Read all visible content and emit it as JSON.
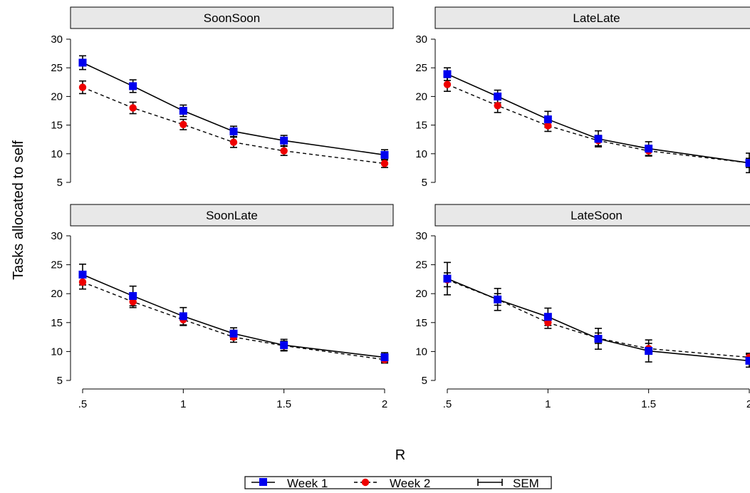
{
  "chart_data": {
    "type": "line",
    "ylabel": "Tasks allocated to self",
    "xlabel": "R",
    "x": [
      0.5,
      0.75,
      1,
      1.25,
      1.5,
      2
    ],
    "x_ticks": [
      {
        "value": 0.5,
        "label": ".5"
      },
      {
        "value": 1,
        "label": "1"
      },
      {
        "value": 1.5,
        "label": "1.5"
      },
      {
        "value": 2,
        "label": "2"
      }
    ],
    "y_ticks": [
      5,
      10,
      15,
      20,
      25,
      30
    ],
    "xlim": [
      0.5,
      2
    ],
    "ylim": [
      5,
      30
    ],
    "legend": {
      "position": "bottom",
      "entries": [
        {
          "label": "Week 1",
          "marker": "square",
          "color": "#0000ee",
          "line": "solid"
        },
        {
          "label": "Week 2",
          "marker": "circle",
          "color": "#ee0000",
          "line": "dashed"
        },
        {
          "label": "SEM",
          "marker": "errorbar",
          "color": "#000000"
        }
      ]
    },
    "panels": [
      {
        "title": "SoonSoon",
        "series": [
          {
            "name": "Week 1",
            "values": [
              25.9,
              21.8,
              17.5,
              13.9,
              12.3,
              9.8
            ],
            "sem": [
              1.2,
              1.1,
              1.0,
              0.9,
              0.9,
              0.9
            ]
          },
          {
            "name": "Week 2",
            "values": [
              21.6,
              18.0,
              15.1,
              12.0,
              10.5,
              8.3
            ],
            "sem": [
              1.1,
              1.0,
              0.9,
              0.9,
              0.8,
              0.7
            ]
          }
        ]
      },
      {
        "title": "LateLate",
        "series": [
          {
            "name": "Week 1",
            "values": [
              23.9,
              20.0,
              16.0,
              12.6,
              10.9,
              8.4
            ],
            "sem": [
              1.1,
              1.1,
              1.4,
              1.4,
              1.2,
              1.7
            ]
          },
          {
            "name": "Week 2",
            "values": [
              22.1,
              18.4,
              14.9,
              12.3,
              10.5,
              8.4
            ],
            "sem": [
              1.2,
              1.2,
              1.0,
              0.9,
              0.9,
              0.8
            ]
          }
        ]
      },
      {
        "title": "SoonLate",
        "series": [
          {
            "name": "Week 1",
            "values": [
              23.3,
              19.6,
              16.1,
              13.1,
              11.1,
              9.0
            ],
            "sem": [
              1.8,
              1.7,
              1.5,
              1.0,
              1.0,
              0.8
            ]
          },
          {
            "name": "Week 2",
            "values": [
              22.0,
              18.6,
              15.5,
              12.5,
              11.0,
              8.6
            ],
            "sem": [
              1.2,
              1.0,
              1.0,
              0.9,
              0.8,
              0.6
            ]
          }
        ]
      },
      {
        "title": "LateSoon",
        "series": [
          {
            "name": "Week 1",
            "values": [
              22.6,
              19.0,
              16.0,
              12.2,
              10.1,
              8.4
            ],
            "sem": [
              2.8,
              1.9,
              1.5,
              1.8,
              1.9,
              1.1
            ]
          },
          {
            "name": "Week 2",
            "values": [
              22.4,
              19.0,
              15.0,
              12.3,
              10.5,
              9.0
            ],
            "sem": [
              1.2,
              1.0,
              1.0,
              0.9,
              0.9,
              0.7
            ]
          }
        ]
      }
    ]
  }
}
